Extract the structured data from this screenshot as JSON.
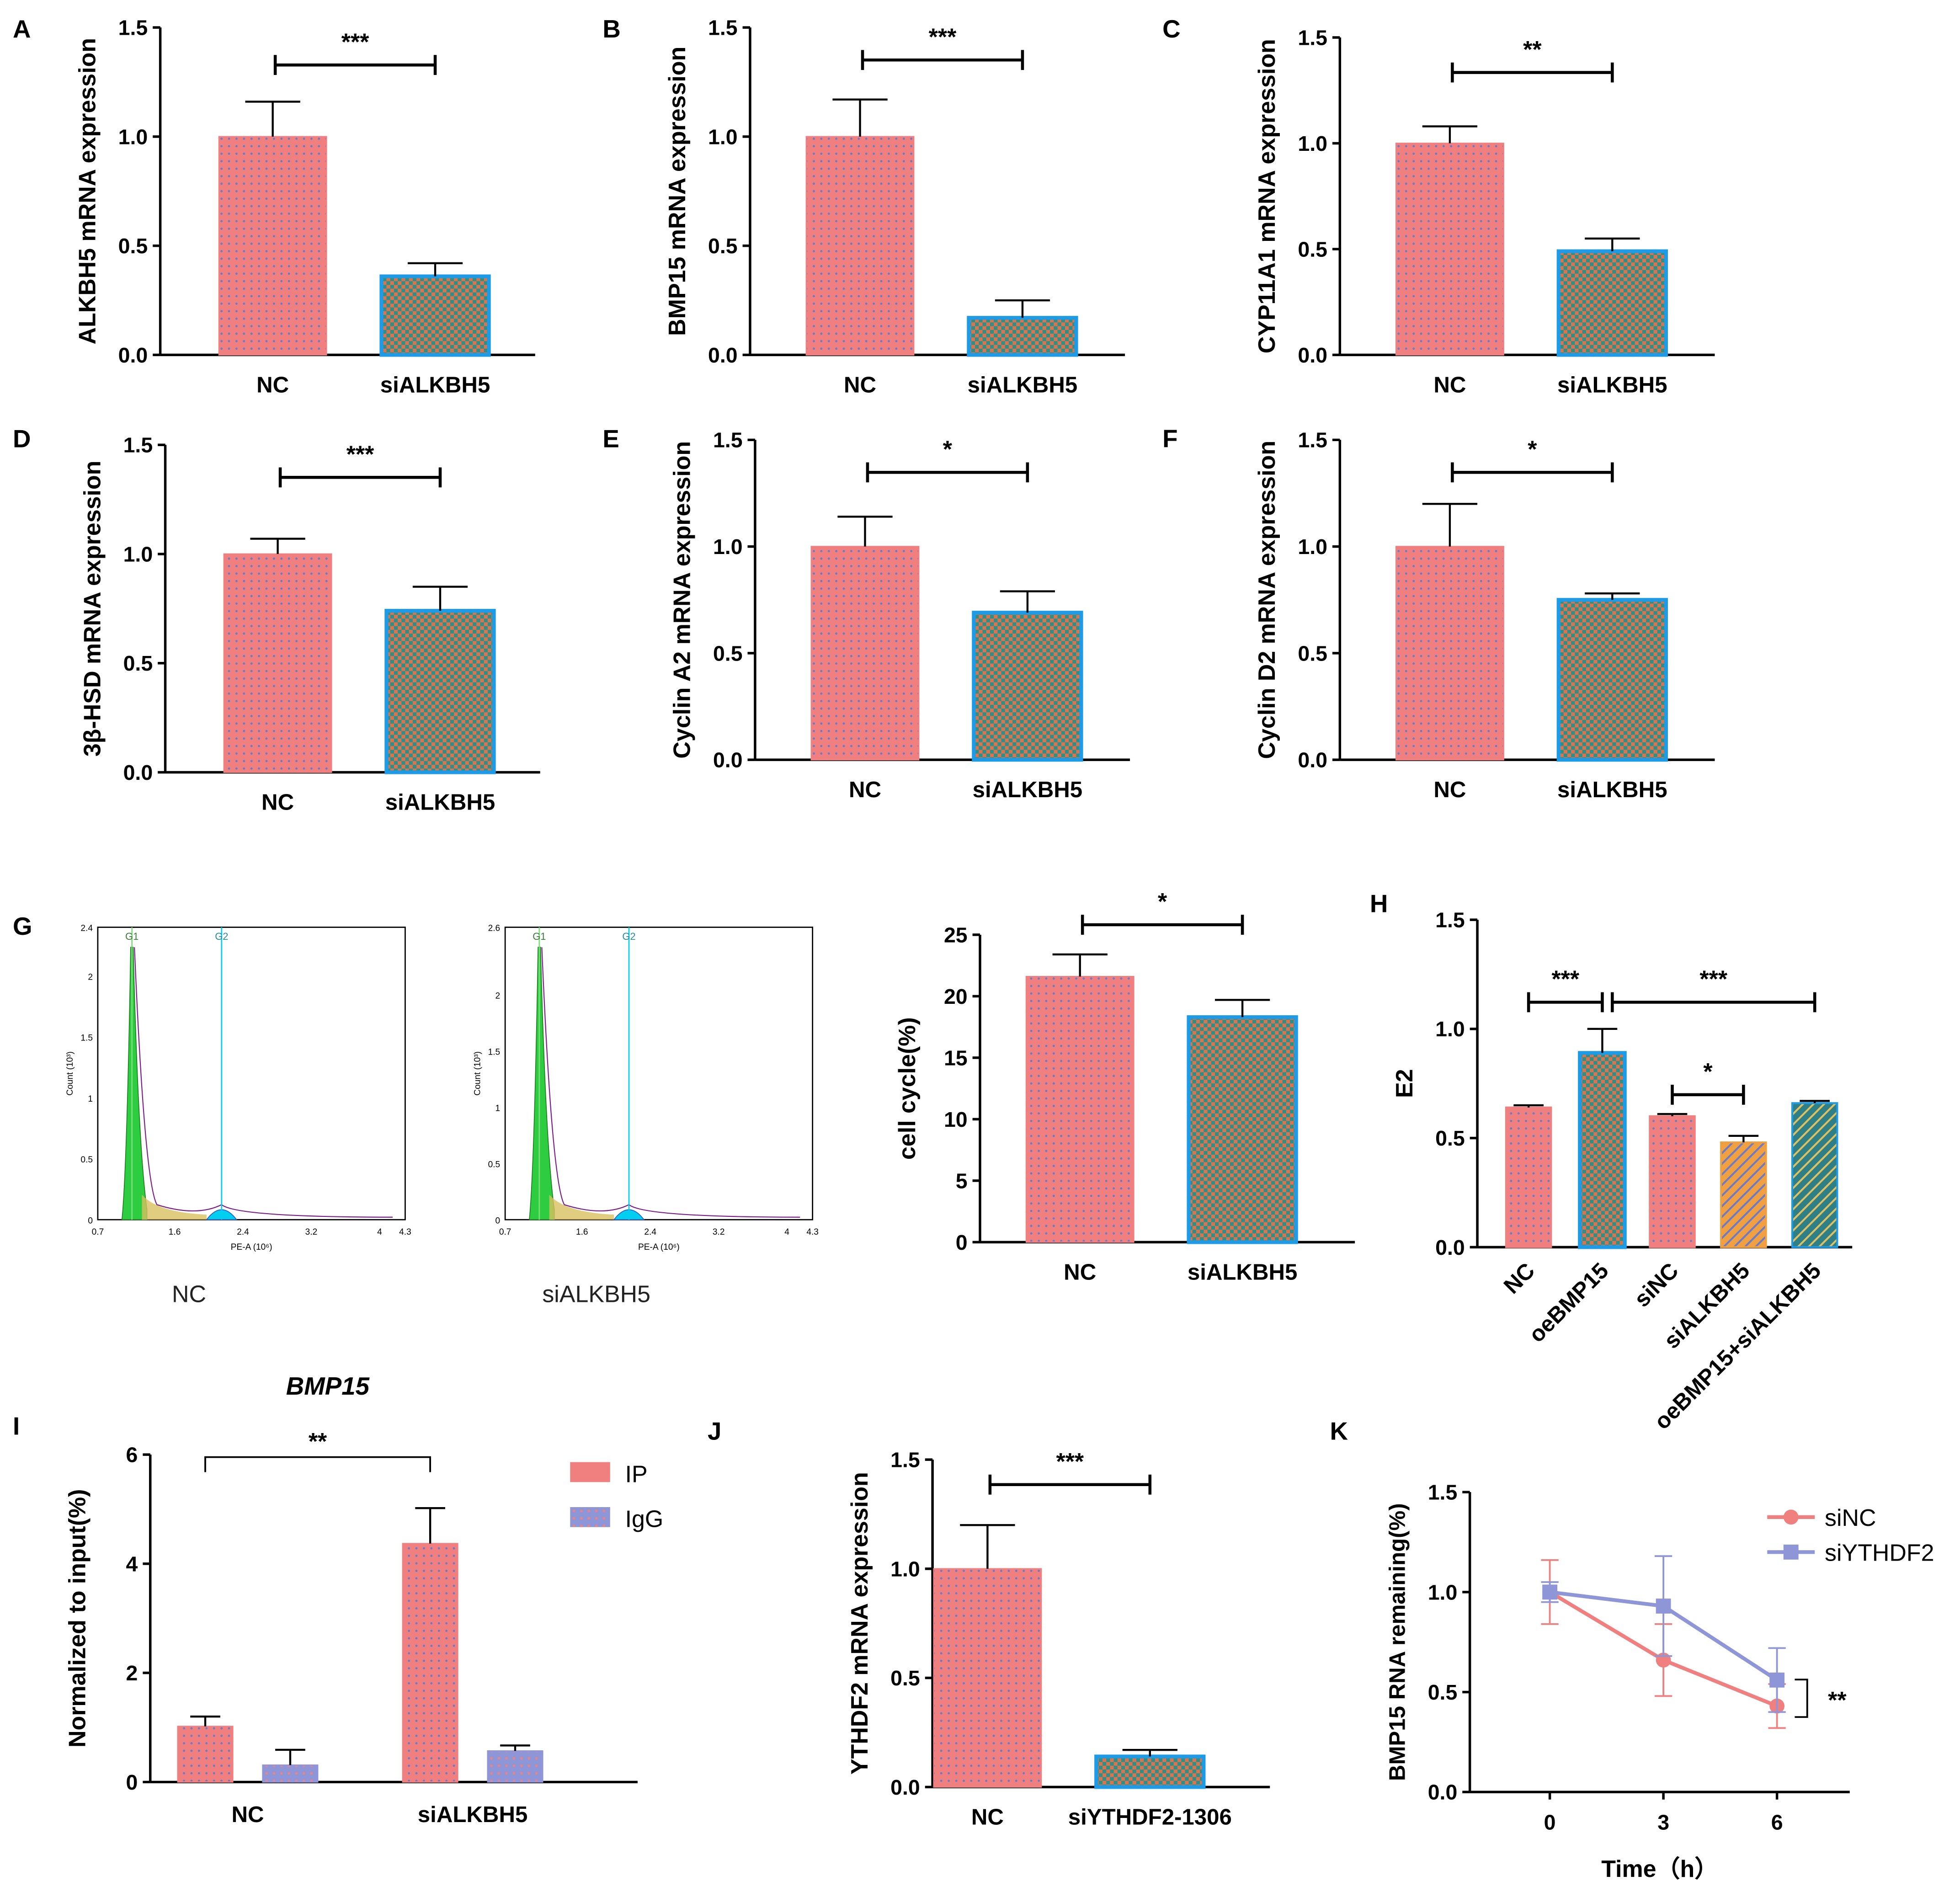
{
  "figure": {
    "description_free": true
  },
  "colors": {
    "nc_fill": "#F08080",
    "nc_dot": "#6A7BC8",
    "si_fill": "#E07050",
    "si_check": "#2A8C88",
    "si_border": "#1E9BE6",
    "orange": "#F0A040",
    "teal": "#2E7F86",
    "ip": "#F08080",
    "igg": "#8E96D8",
    "line_sinc": "#F08080",
    "line_siythdf2": "#8E96D8",
    "flow_green": "#2ECC40",
    "flow_cyan": "#00CFEF"
  },
  "chart_data": [
    {
      "panel": "A",
      "type": "bar",
      "ylabel": "ALKBH5 mRNA expression",
      "categories": [
        "NC",
        "siALKBH5"
      ],
      "values": [
        1.0,
        0.36
      ],
      "errors": [
        0.16,
        0.06
      ],
      "ylim": [
        0,
        1.5
      ],
      "yticks": [
        "0.0",
        "0.5",
        "1.0",
        "1.5"
      ],
      "sig": "***"
    },
    {
      "panel": "B",
      "type": "bar",
      "ylabel": "BMP15 mRNA expression",
      "categories": [
        "NC",
        "siALKBH5"
      ],
      "values": [
        1.0,
        0.17
      ],
      "errors": [
        0.17,
        0.08
      ],
      "ylim": [
        0,
        1.5
      ],
      "yticks": [
        "0.0",
        "0.5",
        "1.0",
        "1.5"
      ],
      "sig": "***"
    },
    {
      "panel": "C",
      "type": "bar",
      "ylabel": "CYP11A1 mRNA expression",
      "categories": [
        "NC",
        "siALKBH5"
      ],
      "values": [
        1.0,
        0.49
      ],
      "errors": [
        0.08,
        0.06
      ],
      "ylim": [
        0,
        1.5
      ],
      "yticks": [
        "0.0",
        "0.5",
        "1.0",
        "1.5"
      ],
      "sig": "**"
    },
    {
      "panel": "D",
      "type": "bar",
      "ylabel": "3β-HSD mRNA expression",
      "categories": [
        "NC",
        "siALKBH5"
      ],
      "values": [
        1.0,
        0.74
      ],
      "errors": [
        0.07,
        0.11
      ],
      "ylim": [
        0,
        1.5
      ],
      "yticks": [
        "0.0",
        "0.5",
        "1.0",
        "1.5"
      ],
      "sig": "***"
    },
    {
      "panel": "E",
      "type": "bar",
      "ylabel": "Cyclin A2 mRNA expression",
      "categories": [
        "NC",
        "siALKBH5"
      ],
      "values": [
        1.0,
        0.69
      ],
      "errors": [
        0.14,
        0.1
      ],
      "ylim": [
        0,
        1.5
      ],
      "yticks": [
        "0.0",
        "0.5",
        "1.0",
        "1.5"
      ],
      "sig": "*"
    },
    {
      "panel": "F",
      "type": "bar",
      "ylabel": "Cyclin D2 mRNA expression",
      "categories": [
        "NC",
        "siALKBH5"
      ],
      "values": [
        1.0,
        0.75
      ],
      "errors": [
        0.2,
        0.03
      ],
      "ylim": [
        0,
        1.5
      ],
      "yticks": [
        "0.0",
        "0.5",
        "1.0",
        "1.5"
      ],
      "sig": "*"
    },
    {
      "panel": "G",
      "type": "bar",
      "ylabel": "cell cycle(%)",
      "categories": [
        "NC",
        "siALKBH5"
      ],
      "values": [
        21.6,
        18.3
      ],
      "errors": [
        1.8,
        1.4
      ],
      "ylim": [
        0,
        25
      ],
      "yticks": [
        "0",
        "5",
        "10",
        "15",
        "20",
        "25"
      ],
      "sig": "*"
    },
    {
      "panel": "H",
      "type": "bar",
      "ylabel": "E2",
      "categories": [
        "NC",
        "oeBMP15",
        "siNC",
        "siALKBH5",
        "oeBMP15+siALKBH5"
      ],
      "values": [
        0.64,
        0.89,
        0.6,
        0.48,
        0.66
      ],
      "errors": [
        0.01,
        0.11,
        0.01,
        0.03,
        0.01
      ],
      "ylim": [
        0,
        1.5
      ],
      "yticks": [
        "0.0",
        "0.5",
        "1.0",
        "1.5"
      ],
      "sig": [
        "***",
        "***",
        "*"
      ]
    },
    {
      "panel": "I",
      "type": "bar",
      "title": "BMP15",
      "ylabel": "Normalized to input(%)",
      "categories": [
        "NC",
        "siALKBH5"
      ],
      "series": [
        {
          "name": "IP",
          "values": [
            1.02,
            4.37
          ],
          "errors": [
            0.18,
            0.65
          ]
        },
        {
          "name": "IgG",
          "values": [
            0.31,
            0.57
          ],
          "errors": [
            0.28,
            0.1
          ]
        }
      ],
      "ylim": [
        0,
        6
      ],
      "yticks": [
        "0",
        "2",
        "4",
        "6"
      ],
      "sig": "**",
      "legend": "top-right"
    },
    {
      "panel": "J",
      "type": "bar",
      "ylabel": "YTHDF2 mRNA expression",
      "categories": [
        "NC",
        "siYTHDF2-1306"
      ],
      "values": [
        1.0,
        0.14
      ],
      "errors": [
        0.2,
        0.03
      ],
      "ylim": [
        0,
        1.5
      ],
      "yticks": [
        "0.0",
        "0.5",
        "1.0",
        "1.5"
      ],
      "sig": "***"
    },
    {
      "panel": "K",
      "type": "line",
      "xlabel": "Time（h）",
      "ylabel": "BMP15 RNA remaining(%)",
      "x": [
        0,
        3,
        6
      ],
      "xticks": [
        "0",
        "3",
        "6"
      ],
      "series": [
        {
          "name": "siNC",
          "values": [
            1.0,
            0.66,
            0.43
          ],
          "errors": [
            0.16,
            0.18,
            0.11
          ]
        },
        {
          "name": "siYTHDF2",
          "values": [
            1.0,
            0.93,
            0.56
          ],
          "errors": [
            0.05,
            0.25,
            0.16
          ]
        }
      ],
      "ylim": [
        0,
        1.5
      ],
      "yticks": [
        "0.0",
        "0.5",
        "1.0",
        "1.5"
      ],
      "sig": "**",
      "legend": "top-right"
    }
  ],
  "flow": {
    "xlabel": "PE-A (10⁶)",
    "ylabel": "Count (10³)",
    "xticks": [
      "0.7",
      "1.6",
      "2.4",
      "3.2",
      "4",
      "4.3"
    ],
    "gates": [
      "G1",
      "G2"
    ],
    "plots": [
      {
        "caption": "NC",
        "yticks": [
          "0",
          "0.5",
          "1",
          "1.5",
          "2",
          "2.4"
        ]
      },
      {
        "caption": "siALKBH5",
        "yticks": [
          "0",
          "0.5",
          "1",
          "1.5",
          "2",
          "2.6"
        ]
      }
    ]
  }
}
